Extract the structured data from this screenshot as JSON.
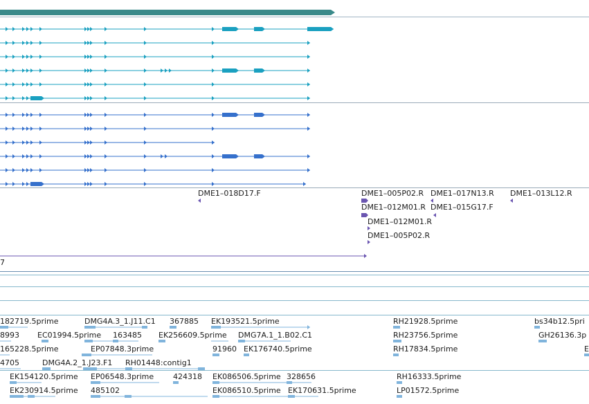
{
  "tracks": {
    "colors": {
      "top_bar": "#3a8a8a",
      "transcript_a": "#1aa0c0",
      "transcript_b": "#3570cc",
      "clone": "#6a55b0",
      "est": "#80b4dc",
      "divider": "#6b8fb0",
      "divider_light": "#86b8cc"
    },
    "clone_labels": [
      "DME1–018D17.F",
      "DME1–005P02.R",
      "DME1–017N13.R",
      "DME1–013L12.R",
      "DME1–012M01.R",
      "DME1–015G17.F",
      "DME1–012M01.R",
      "DME1–005P02.R",
      "7"
    ],
    "est_labels": [
      "182719.5prime",
      "DMG4A.3_1.J11.C1",
      "367885",
      "EK193521.5prime",
      "RH21928.5prime",
      "bs34b12.5pri",
      "8993",
      "EC01994.5prime",
      "163485",
      "EK256609.5prime",
      "DMG7A.1_1.B02.C1",
      "RH23756.5prime",
      "GH26136.3p",
      "165228.5prime",
      "EP07848.3prime",
      "91960",
      "EK176740.5prime",
      "RH17834.5prime",
      "E",
      "4705",
      "DMG4A.2_1.J23.F1",
      "RH01448:contig1",
      "EK154120.5prime",
      "EP06548.3prime",
      "424318",
      "EK086506.5prime",
      "328656",
      "RH16333.5prime",
      "EK230914.5prime",
      "485102",
      "EK086510.5prime",
      "EK170631.5prime",
      "LP01572.5prime"
    ]
  }
}
